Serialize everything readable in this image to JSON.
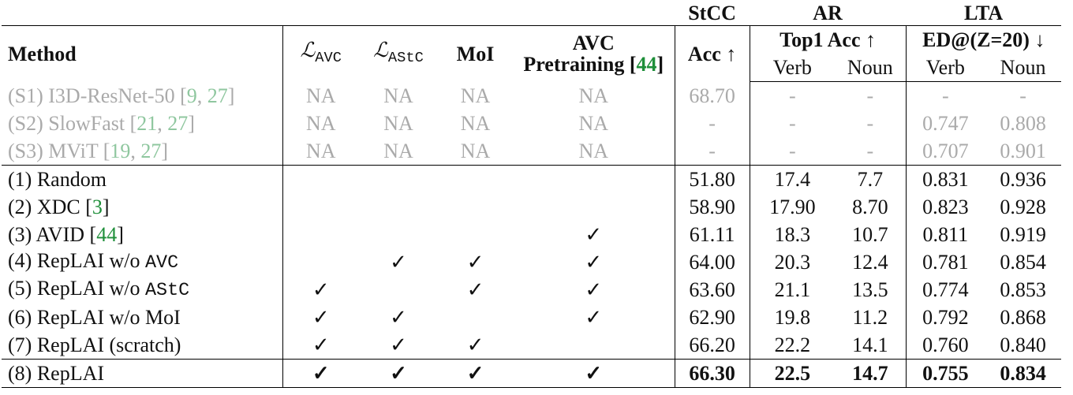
{
  "header": {
    "groups": [
      "StCC",
      "AR",
      "LTA"
    ],
    "columns": [
      {
        "parts": [
          {
            "text": "Method"
          }
        ]
      },
      {
        "parts": [
          {
            "text": "ℒ"
          },
          {
            "text": "AVC",
            "sub": true,
            "mono": true
          }
        ]
      },
      {
        "parts": [
          {
            "text": "ℒ"
          },
          {
            "text": "AStC",
            "sub": true,
            "mono": true
          }
        ]
      },
      {
        "parts": [
          {
            "text": "MoI"
          }
        ]
      },
      {
        "parts": [
          {
            "text": "AVC"
          },
          {
            "text": "Pretraining [",
            "break_before": true
          },
          {
            "text": "44",
            "cite": true
          },
          {
            "text": "]"
          }
        ]
      },
      {
        "parts": [
          {
            "text": "Acc ↑"
          }
        ]
      }
    ],
    "subgroups": [
      "Top1 Acc ↑",
      "ED@(Z=20) ↓"
    ],
    "subcolumns": [
      "Verb",
      "Noun",
      "Verb",
      "Noun"
    ]
  },
  "row_groups": [
    {
      "muted": true,
      "rows": [
        {
          "method": [
            {
              "text": "(S1) I3D-ResNet-50 ["
            },
            {
              "text": "9",
              "cite": true
            },
            {
              "text": ", "
            },
            {
              "text": "27",
              "cite": true
            },
            {
              "text": "]"
            }
          ],
          "cells": [
            "NA",
            "NA",
            "NA",
            "NA",
            "68.70",
            "-",
            "-",
            "-",
            "-"
          ]
        },
        {
          "method": [
            {
              "text": "(S2) SlowFast ["
            },
            {
              "text": "21",
              "cite": true
            },
            {
              "text": ", "
            },
            {
              "text": "27",
              "cite": true
            },
            {
              "text": "]"
            }
          ],
          "cells": [
            "NA",
            "NA",
            "NA",
            "NA",
            "-",
            "-",
            "-",
            "0.747",
            "0.808"
          ]
        },
        {
          "method": [
            {
              "text": "(S3) MViT ["
            },
            {
              "text": "19",
              "cite": true
            },
            {
              "text": ", "
            },
            {
              "text": "27",
              "cite": true
            },
            {
              "text": "]"
            }
          ],
          "cells": [
            "NA",
            "NA",
            "NA",
            "NA",
            "-",
            "-",
            "-",
            "0.707",
            "0.901"
          ]
        }
      ]
    },
    {
      "rows": [
        {
          "method": [
            {
              "text": "(1) Random"
            }
          ],
          "cells": [
            null,
            null,
            null,
            null,
            "51.80",
            "17.4",
            "7.7",
            "0.831",
            "0.936"
          ]
        },
        {
          "method": [
            {
              "text": "(2) XDC ["
            },
            {
              "text": "3",
              "cite": true
            },
            {
              "text": "]"
            }
          ],
          "cells": [
            null,
            null,
            null,
            null,
            "58.90",
            "17.90",
            "8.70",
            "0.823",
            "0.928"
          ]
        },
        {
          "method": [
            {
              "text": "(3) AVID ["
            },
            {
              "text": "44",
              "cite": true
            },
            {
              "text": "]"
            }
          ],
          "cells": [
            null,
            null,
            null,
            "✓",
            "61.11",
            "18.3",
            "10.7",
            "0.811",
            "0.919"
          ]
        },
        {
          "method": [
            {
              "text": "(4) RepLAI w/o "
            },
            {
              "text": "AVC",
              "mono": true
            }
          ],
          "cells": [
            null,
            "✓",
            "✓",
            "✓",
            "64.00",
            "20.3",
            "12.4",
            "0.781",
            "0.854"
          ]
        },
        {
          "method": [
            {
              "text": "(5) RepLAI w/o "
            },
            {
              "text": "AStC",
              "mono": true
            }
          ],
          "cells": [
            "✓",
            null,
            "✓",
            "✓",
            "63.60",
            "21.1",
            "13.5",
            "0.774",
            "0.853"
          ]
        },
        {
          "method": [
            {
              "text": "(6) RepLAI w/o MoI"
            }
          ],
          "cells": [
            "✓",
            "✓",
            null,
            "✓",
            "62.90",
            "19.8",
            "11.2",
            "0.792",
            "0.868"
          ]
        },
        {
          "method": [
            {
              "text": "(7) RepLAI (scratch)"
            }
          ],
          "cells": [
            "✓",
            "✓",
            "✓",
            null,
            "66.20",
            "22.2",
            "14.1",
            "0.760",
            "0.840"
          ]
        }
      ]
    },
    {
      "bold": true,
      "rows": [
        {
          "method": [
            {
              "text": "(8) RepLAI"
            }
          ],
          "cells": [
            "✓",
            "✓",
            "✓",
            "✓",
            "66.30",
            "22.5",
            "14.7",
            "0.755",
            "0.834"
          ]
        }
      ]
    }
  ]
}
